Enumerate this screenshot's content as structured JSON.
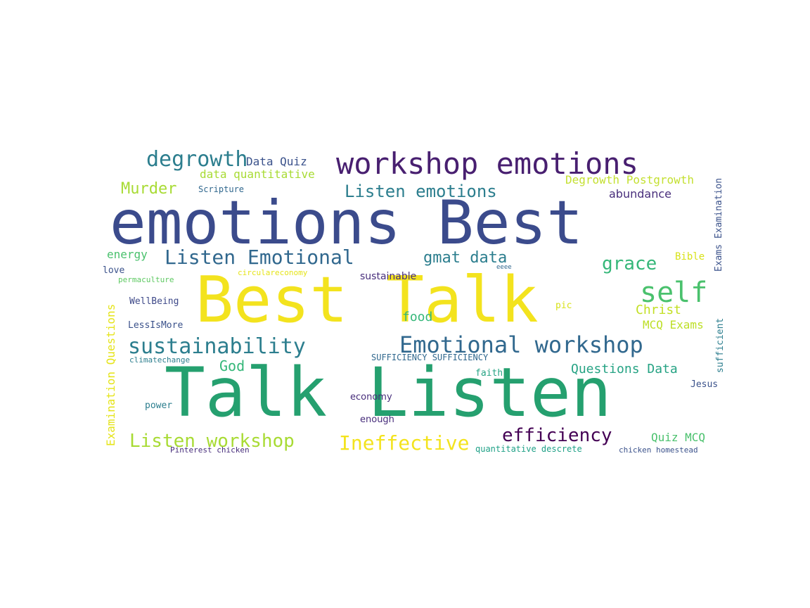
{
  "palette": {
    "yellow": "#f3e31e",
    "green": "#35b779",
    "lime": "#a8db34",
    "navy": "#3b4b8c",
    "purple": "#481f70",
    "teal": "#2c7e8e",
    "blue": "#31688e",
    "sea": "#26a384",
    "seafoam": "#4ac16d",
    "deep": "#440154"
  },
  "words": [
    {
      "text": "emotions Best",
      "color": "#3b4b8c"
    },
    {
      "text": "Best Talk",
      "color": "#f3e31e"
    },
    {
      "text": "Talk Listen",
      "color": "#25a06f"
    },
    {
      "text": "workshop emotions",
      "color": "#481f70"
    },
    {
      "text": "degrowth",
      "color": "#2c7e8e"
    },
    {
      "text": "Data Quiz",
      "color": "#3b528b"
    },
    {
      "text": "data quantitative",
      "color": "#a8db34"
    },
    {
      "text": "Murder",
      "color": "#a8db34"
    },
    {
      "text": "Scripture",
      "color": "#31688e"
    },
    {
      "text": "Listen emotions",
      "color": "#2c7e8e"
    },
    {
      "text": "Degrowth Postgrowth",
      "color": "#c4e032"
    },
    {
      "text": "abundance",
      "color": "#472d7b"
    },
    {
      "text": "Listen Emotional",
      "color": "#31688e"
    },
    {
      "text": "gmat data",
      "color": "#2c7e8e"
    },
    {
      "text": "grace",
      "color": "#35b779"
    },
    {
      "text": "energy",
      "color": "#4ac16d"
    },
    {
      "text": "love",
      "color": "#3b528b"
    },
    {
      "text": "circulareconomy",
      "color": "#e5e419"
    },
    {
      "text": "eeee",
      "color": "#31688e"
    },
    {
      "text": "Bible",
      "color": "#d8e219"
    },
    {
      "text": "permaculture",
      "color": "#5ec962"
    },
    {
      "text": "sustainable",
      "color": "#472d7b"
    },
    {
      "text": "self",
      "color": "#4ac16d"
    },
    {
      "text": "WellBeing",
      "color": "#3e4989"
    },
    {
      "text": "pic",
      "color": "#d8e219"
    },
    {
      "text": "Christ",
      "color": "#c2df23"
    },
    {
      "text": "food",
      "color": "#35b779"
    },
    {
      "text": "LessIsMore",
      "color": "#3b528b"
    },
    {
      "text": "MCQ Exams",
      "color": "#bddf26"
    },
    {
      "text": "sustainability",
      "color": "#2c7e8e"
    },
    {
      "text": "Emotional workshop",
      "color": "#31688e"
    },
    {
      "text": "climatechange",
      "color": "#2c7e8e"
    },
    {
      "text": "SUFFICIENCY SUFFICIENCY",
      "color": "#31688e"
    },
    {
      "text": "God",
      "color": "#35b779"
    },
    {
      "text": "faith",
      "color": "#26a384"
    },
    {
      "text": "Questions Data",
      "color": "#26a384"
    },
    {
      "text": "Jesus",
      "color": "#3b528b"
    },
    {
      "text": "power",
      "color": "#2c7e8e"
    },
    {
      "text": "economy",
      "color": "#472d7b"
    },
    {
      "text": "enough",
      "color": "#472d7b"
    },
    {
      "text": "Listen workshop",
      "color": "#a8db34"
    },
    {
      "text": "Ineffective",
      "color": "#f3e31e"
    },
    {
      "text": "efficiency",
      "color": "#440154"
    },
    {
      "text": "Quiz MCQ",
      "color": "#4ac16d"
    },
    {
      "text": "Pinterest chicken",
      "color": "#472d7b"
    },
    {
      "text": "quantitative descrete",
      "color": "#1fa187"
    },
    {
      "text": "chicken homestead",
      "color": "#3b528b"
    },
    {
      "text": "Examination Questions",
      "color": "#e5e419"
    },
    {
      "text": "Exams Examination",
      "color": "#3b528b"
    },
    {
      "text": "sufficient",
      "color": "#2c7e8e"
    }
  ]
}
